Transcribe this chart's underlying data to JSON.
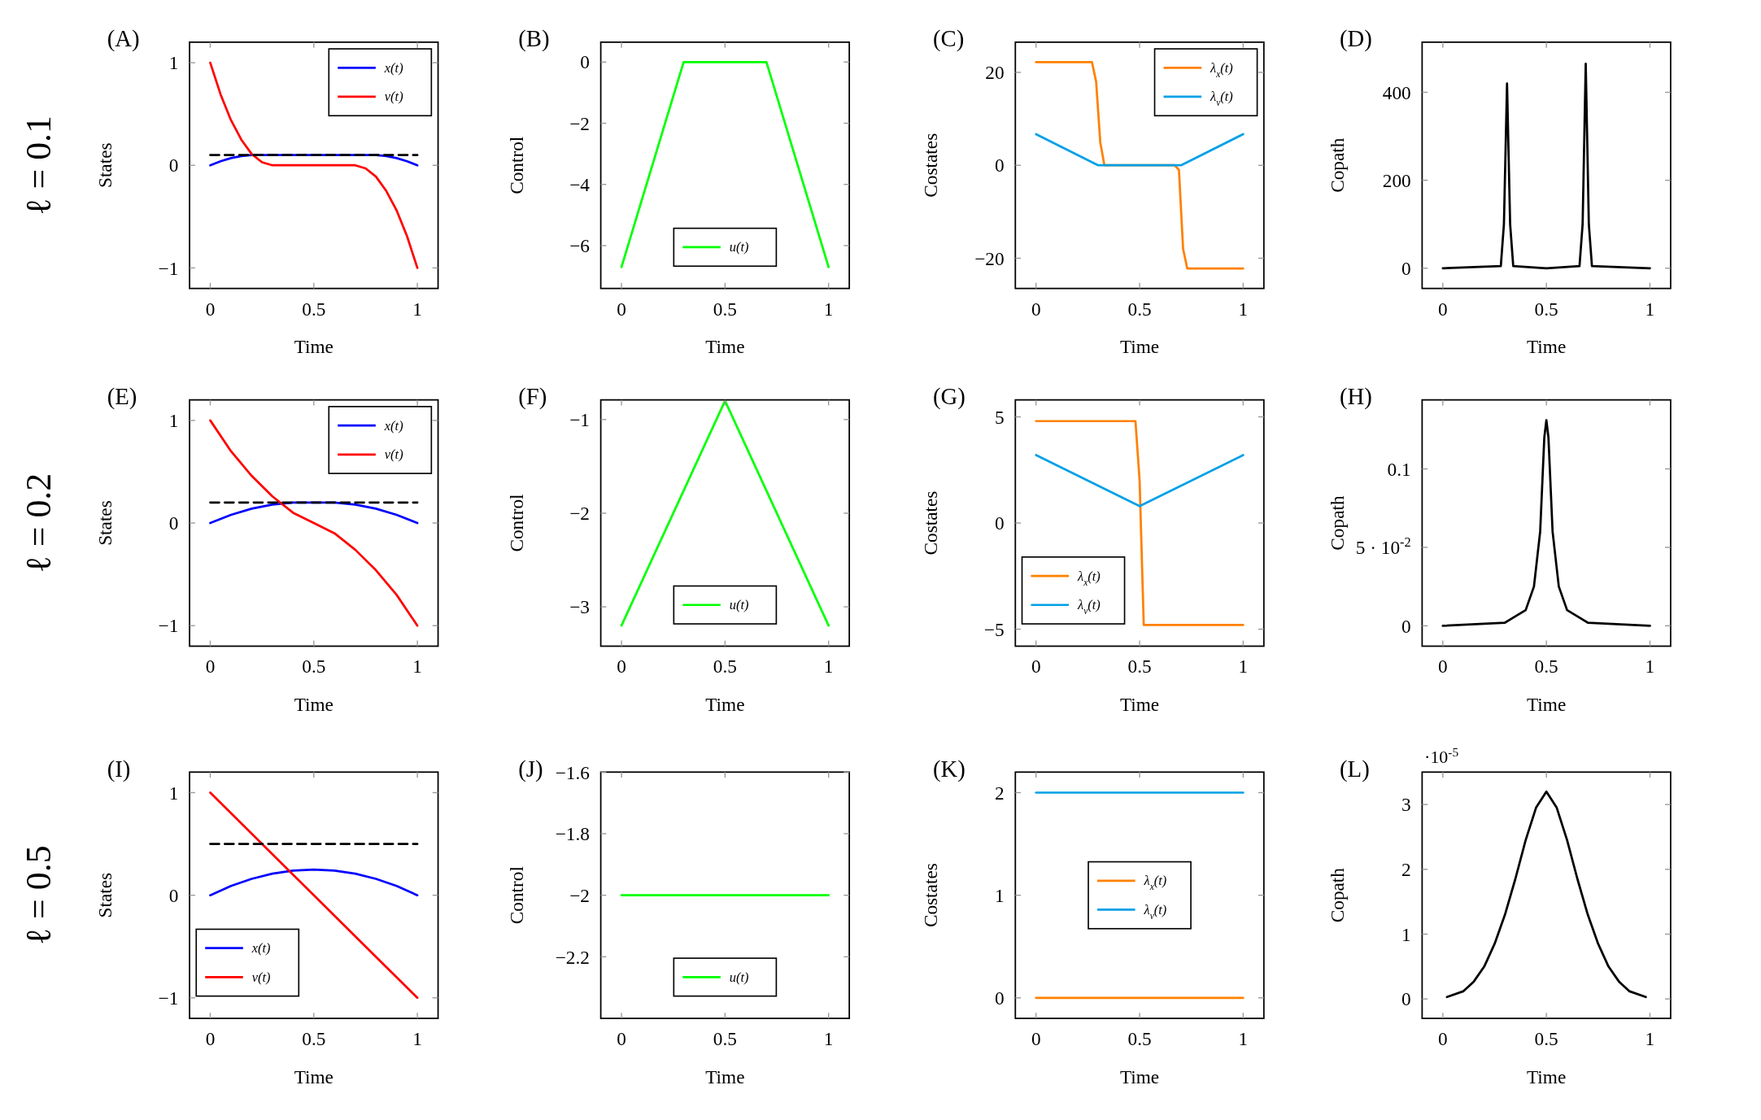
{
  "chart_data": [
    {
      "type": "line",
      "title": "(A)",
      "subtitle": "ℓ = 0.1",
      "xlabel": "Time",
      "ylabel": "States",
      "xlim": [
        -0.1,
        1.1
      ],
      "ylim": [
        -1.2,
        1.2
      ],
      "xticks": [
        0,
        0.5,
        1
      ],
      "yticks": [
        -1,
        0,
        1
      ],
      "legend": "top right",
      "series": [
        {
          "name": "x(t)",
          "color": "#0000ff",
          "x": [
            0,
            0.05,
            0.1,
            0.15,
            0.2,
            0.25,
            0.3,
            0.7,
            0.75,
            0.8,
            0.85,
            0.9,
            0.95,
            1
          ],
          "values": [
            0,
            0.04,
            0.07,
            0.09,
            0.1,
            0.1,
            0.1,
            0.1,
            0.1,
            0.1,
            0.09,
            0.07,
            0.04,
            0
          ]
        },
        {
          "name": "v(t)",
          "color": "#ff0000",
          "x": [
            0,
            0.05,
            0.1,
            0.15,
            0.2,
            0.25,
            0.3,
            0.7,
            0.75,
            0.8,
            0.85,
            0.9,
            0.95,
            1
          ],
          "values": [
            1,
            0.69,
            0.44,
            0.25,
            0.11,
            0.03,
            0,
            0,
            -0.03,
            -0.11,
            -0.25,
            -0.44,
            -0.69,
            -1
          ]
        },
        {
          "color": "#000000",
          "line_style": "dashed",
          "x": [
            0,
            1
          ],
          "values": [
            0.1,
            0.1
          ]
        }
      ]
    },
    {
      "type": "line",
      "title": "(B)",
      "xlabel": "Time",
      "ylabel": "Control",
      "xlim": [
        -0.1,
        1.1
      ],
      "ylim": [
        -7.4,
        0.65
      ],
      "xticks": [
        0,
        0.5,
        1
      ],
      "yticks": [
        -6,
        -4,
        -2,
        0
      ],
      "legend": "bottom",
      "series": [
        {
          "name": "u(t)",
          "color": "#00ff00",
          "x": [
            0,
            0.3,
            0.7,
            1
          ],
          "values": [
            -6.7,
            0,
            0,
            -6.7
          ]
        }
      ]
    },
    {
      "type": "line",
      "title": "(C)",
      "xlabel": "Time",
      "ylabel": "Costates",
      "xlim": [
        -0.1,
        1.1
      ],
      "ylim": [
        -26.5,
        26.5
      ],
      "xticks": [
        0,
        0.5,
        1
      ],
      "yticks": [
        -20,
        0,
        20
      ],
      "legend": "top right",
      "series": [
        {
          "name": "λ$_{x}$(t)",
          "color": "#ff8000",
          "x": [
            0,
            0.27,
            0.29,
            0.31,
            0.33,
            0.67,
            0.69,
            0.71,
            0.73,
            1
          ],
          "values": [
            22.2,
            22.2,
            18,
            5,
            0,
            0,
            -1,
            -18,
            -22.2,
            -22.2
          ]
        },
        {
          "name": "λ$_{v}$(t)",
          "color": "#00a0e6",
          "x": [
            0,
            0.3,
            0.7,
            1
          ],
          "values": [
            6.7,
            0,
            0,
            6.7
          ]
        }
      ]
    },
    {
      "type": "line",
      "title": "(D)",
      "xlabel": "Time",
      "ylabel": "Copath",
      "xlim": [
        -0.1,
        1.1
      ],
      "ylim": [
        -46,
        514
      ],
      "xticks": [
        0,
        0.5,
        1
      ],
      "yticks": [
        0,
        200,
        400
      ],
      "series": [
        {
          "color": "#000000",
          "x": [
            0,
            0.28,
            0.295,
            0.31,
            0.325,
            0.34,
            0.5,
            0.66,
            0.675,
            0.69,
            0.705,
            0.72,
            1
          ],
          "values": [
            0,
            5,
            100,
            420,
            100,
            5,
            0,
            5,
            100,
            465,
            100,
            5,
            0
          ]
        }
      ]
    },
    {
      "type": "line",
      "title": "(E)",
      "subtitle": "ℓ = 0.2",
      "xlabel": "Time",
      "ylabel": "States",
      "xlim": [
        -0.1,
        1.1
      ],
      "ylim": [
        -1.2,
        1.2
      ],
      "xticks": [
        0,
        0.5,
        1
      ],
      "yticks": [
        -1,
        0,
        1
      ],
      "legend": "top right",
      "series": [
        {
          "name": "x(t)",
          "color": "#0000ff",
          "x": [
            0,
            0.1,
            0.2,
            0.3,
            0.4,
            0.5,
            0.6,
            0.7,
            0.8,
            0.9,
            1
          ],
          "values": [
            0,
            0.08,
            0.14,
            0.18,
            0.2,
            0.2,
            0.2,
            0.18,
            0.14,
            0.08,
            0
          ]
        },
        {
          "name": "v(t)",
          "color": "#ff0000",
          "x": [
            0,
            0.1,
            0.2,
            0.3,
            0.4,
            0.5,
            0.6,
            0.7,
            0.8,
            0.9,
            1
          ],
          "values": [
            1,
            0.7,
            0.46,
            0.26,
            0.1,
            0,
            -0.1,
            -0.26,
            -0.46,
            -0.7,
            -1
          ]
        },
        {
          "color": "#000000",
          "line_style": "dashed",
          "x": [
            0,
            1
          ],
          "values": [
            0.2,
            0.2
          ]
        }
      ]
    },
    {
      "type": "line",
      "title": "(F)",
      "xlabel": "Time",
      "ylabel": "Control",
      "xlim": [
        -0.1,
        1.1
      ],
      "ylim": [
        -3.42,
        -0.79
      ],
      "xticks": [
        0,
        0.5,
        1
      ],
      "yticks": [
        -3,
        -2,
        -1
      ],
      "legend": "bottom",
      "series": [
        {
          "name": "u(t)",
          "color": "#00ff00",
          "x": [
            0,
            0.5,
            1
          ],
          "values": [
            -3.2,
            -0.8,
            -3.2
          ]
        }
      ]
    },
    {
      "type": "line",
      "title": "(G)",
      "xlabel": "Time",
      "ylabel": "Costates",
      "xlim": [
        -0.1,
        1.1
      ],
      "ylim": [
        -5.8,
        5.8
      ],
      "xticks": [
        0,
        0.5,
        1
      ],
      "yticks": [
        -5,
        0,
        5
      ],
      "legend": "bottom left",
      "series": [
        {
          "name": "λ$_{x}$(t)",
          "color": "#ff8000",
          "x": [
            0,
            0.48,
            0.5,
            0.52,
            1
          ],
          "values": [
            4.8,
            4.8,
            2,
            -4.8,
            -4.8
          ]
        },
        {
          "name": "λ$_{v}$(t)",
          "color": "#00a0e6",
          "x": [
            0,
            0.5,
            1
          ],
          "values": [
            3.2,
            0.8,
            3.2
          ]
        }
      ]
    },
    {
      "type": "line",
      "title": "(H)",
      "xlabel": "Time",
      "ylabel": "Copath",
      "xlim": [
        -0.1,
        1.1
      ],
      "ylim": [
        -0.013,
        0.144
      ],
      "xticks": [
        0,
        0.5,
        1
      ],
      "yticks": [
        0,
        {
          "value": 0.05,
          "label": "5 · 10$^{-2}$"
        },
        0.1
      ],
      "series": [
        {
          "color": "#000000",
          "x": [
            0,
            0.3,
            0.4,
            0.44,
            0.47,
            0.49,
            0.5,
            0.51,
            0.53,
            0.56,
            0.6,
            0.7,
            1
          ],
          "values": [
            0,
            0.002,
            0.01,
            0.025,
            0.06,
            0.12,
            0.131,
            0.12,
            0.06,
            0.025,
            0.01,
            0.002,
            0
          ]
        }
      ]
    },
    {
      "type": "line",
      "title": "(I)",
      "subtitle": "ℓ = 0.5",
      "xlabel": "Time",
      "ylabel": "States",
      "xlim": [
        -0.1,
        1.1
      ],
      "ylim": [
        -1.2,
        1.2
      ],
      "xticks": [
        0,
        0.5,
        1
      ],
      "yticks": [
        -1,
        0,
        1
      ],
      "legend": "bottom left",
      "series": [
        {
          "name": "x(t)",
          "color": "#0000ff",
          "x": [
            0,
            0.1,
            0.2,
            0.3,
            0.4,
            0.5,
            0.6,
            0.7,
            0.8,
            0.9,
            1
          ],
          "values": [
            0,
            0.09,
            0.16,
            0.21,
            0.24,
            0.25,
            0.24,
            0.21,
            0.16,
            0.09,
            0
          ]
        },
        {
          "name": "v(t)",
          "color": "#ff0000",
          "x": [
            0,
            1
          ],
          "values": [
            1,
            -1
          ]
        },
        {
          "color": "#000000",
          "line_style": "dashed",
          "x": [
            0,
            1
          ],
          "values": [
            0.5,
            0.5
          ]
        }
      ]
    },
    {
      "type": "line",
      "title": "(J)",
      "xlabel": "Time",
      "ylabel": "Control",
      "xlim": [
        -0.1,
        1.1
      ],
      "ylim": [
        -2.4,
        -1.6
      ],
      "xticks": [
        0,
        0.5,
        1
      ],
      "yticks": [
        -2.2,
        -2,
        -1.8,
        -1.6
      ],
      "legend": "bottom",
      "series": [
        {
          "name": "u(t)",
          "color": "#00ff00",
          "x": [
            0,
            1
          ],
          "values": [
            -2,
            -2
          ]
        }
      ]
    },
    {
      "type": "line",
      "title": "(K)",
      "xlabel": "Time",
      "ylabel": "Costates",
      "xlim": [
        -0.1,
        1.1
      ],
      "ylim": [
        -0.2,
        2.2
      ],
      "xticks": [
        0,
        0.5,
        1
      ],
      "yticks": [
        0,
        1,
        2
      ],
      "legend": "center",
      "series": [
        {
          "name": "λ$_{x}$(t)",
          "color": "#ff8000",
          "x": [
            0,
            1
          ],
          "values": [
            0,
            0
          ]
        },
        {
          "name": "λ$_{v}$(t)",
          "color": "#00a0e6",
          "x": [
            0,
            1
          ],
          "values": [
            2,
            2
          ]
        }
      ]
    },
    {
      "type": "line",
      "title": "(L)",
      "xlabel": "Time",
      "ylabel": "Copath",
      "xlim": [
        -0.1,
        1.1
      ],
      "ylim": [
        -0.3,
        3.5
      ],
      "xticks": [
        0,
        0.5,
        1
      ],
      "yticks": [
        0,
        1,
        2,
        3
      ],
      "annotations": [
        "·10$^{-5}$"
      ],
      "series": [
        {
          "color": "#000000",
          "x": [
            0.02,
            0.1,
            0.15,
            0.2,
            0.25,
            0.3,
            0.35,
            0.4,
            0.45,
            0.5,
            0.55,
            0.6,
            0.65,
            0.7,
            0.75,
            0.8,
            0.85,
            0.9,
            0.98
          ],
          "values": [
            0.03,
            0.12,
            0.27,
            0.5,
            0.85,
            1.3,
            1.85,
            2.45,
            2.95,
            3.2,
            2.95,
            2.45,
            1.85,
            1.3,
            0.85,
            0.5,
            0.27,
            0.12,
            0.03
          ]
        }
      ]
    }
  ]
}
